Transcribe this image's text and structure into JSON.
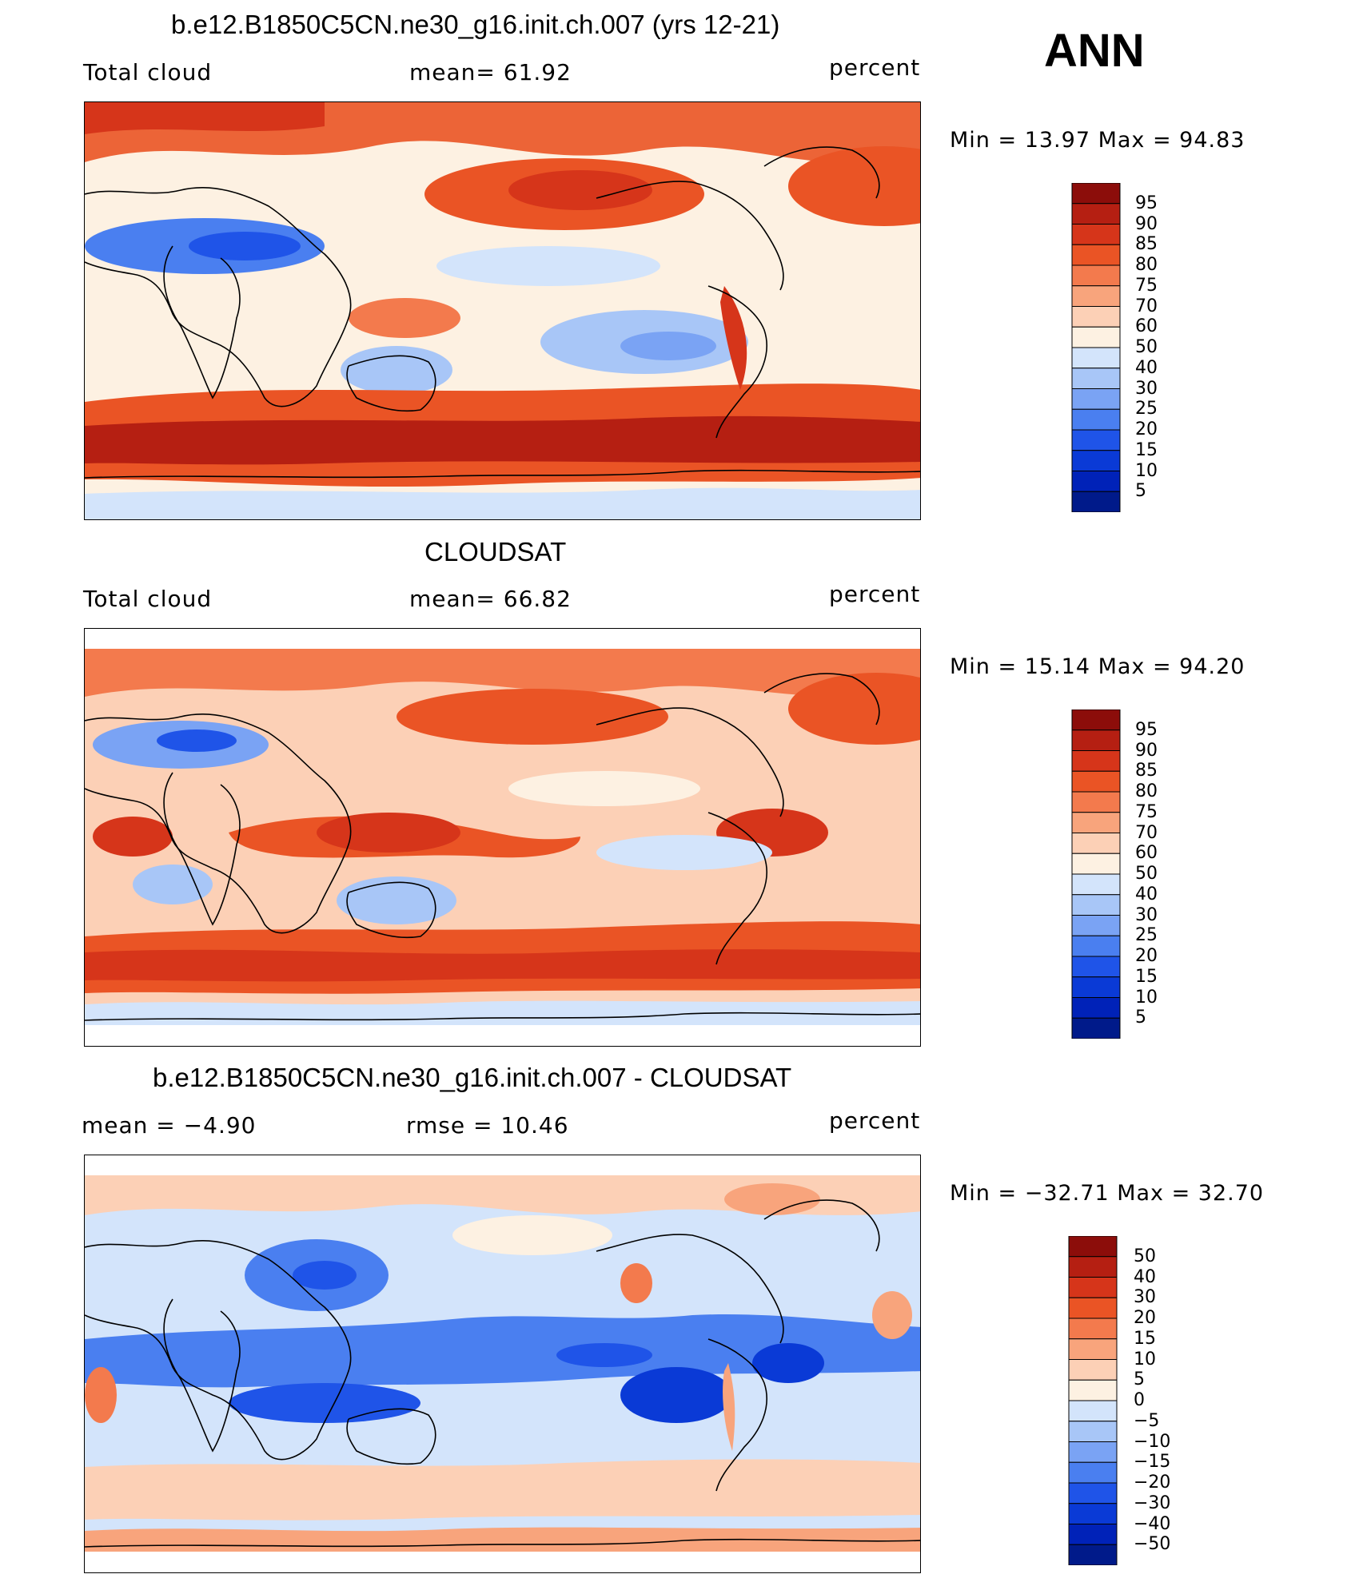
{
  "season": "ANN",
  "colors": {
    "abs_scale": [
      "#001a8a",
      "#0022b8",
      "#0a3ad6",
      "#1f54e8",
      "#4a7ff0",
      "#7aa3f4",
      "#a8c6f7",
      "#d3e4fb",
      "#fdf1e2",
      "#fcd0b6",
      "#f8a47c",
      "#f37a4d",
      "#ea5425",
      "#d6351a",
      "#b51f12",
      "#8c0d0a"
    ],
    "diff_scale": [
      "#001a8a",
      "#0022b8",
      "#0a3ad6",
      "#1f54e8",
      "#4a7ff0",
      "#7aa3f4",
      "#a8c6f7",
      "#d3e4fb",
      "#fdf1e2",
      "#fcd0b6",
      "#f8a47c",
      "#f37a4d",
      "#ea5425",
      "#d6351a",
      "#b51f12",
      "#8c0d0a"
    ],
    "coast": "#000000"
  },
  "panels": [
    {
      "title": "b.e12.B1850C5CN.ne30_g16.init.ch.007 (yrs 12-21)",
      "left_label": "Total cloud",
      "center_label": "mean=   61.92",
      "right_label": "percent",
      "minmax": "Min =    13.97  Max =    94.83",
      "colorbar_labels": [
        "95",
        "90",
        "85",
        "80",
        "75",
        "70",
        "60",
        "50",
        "40",
        "30",
        "25",
        "20",
        "15",
        "10",
        "5"
      ]
    },
    {
      "title": "CLOUDSAT",
      "left_label": "Total cloud",
      "center_label": "mean=   66.82",
      "right_label": "percent",
      "minmax": "Min =    15.14  Max =    94.20",
      "colorbar_labels": [
        "95",
        "90",
        "85",
        "80",
        "75",
        "70",
        "60",
        "50",
        "40",
        "30",
        "25",
        "20",
        "15",
        "10",
        "5"
      ]
    },
    {
      "title": "b.e12.B1850C5CN.ne30_g16.init.ch.007 - CLOUDSAT",
      "left_label": "mean =   −4.90",
      "center_label": "rmse =    10.46",
      "right_label": "percent",
      "minmax": "Min = −32.71  Max =    32.70",
      "colorbar_labels": [
        "50",
        "40",
        "30",
        "20",
        "15",
        "10",
        "5",
        "0",
        "−5",
        "−10",
        "−15",
        "−20",
        "−30",
        "−40",
        "−50"
      ]
    }
  ]
}
